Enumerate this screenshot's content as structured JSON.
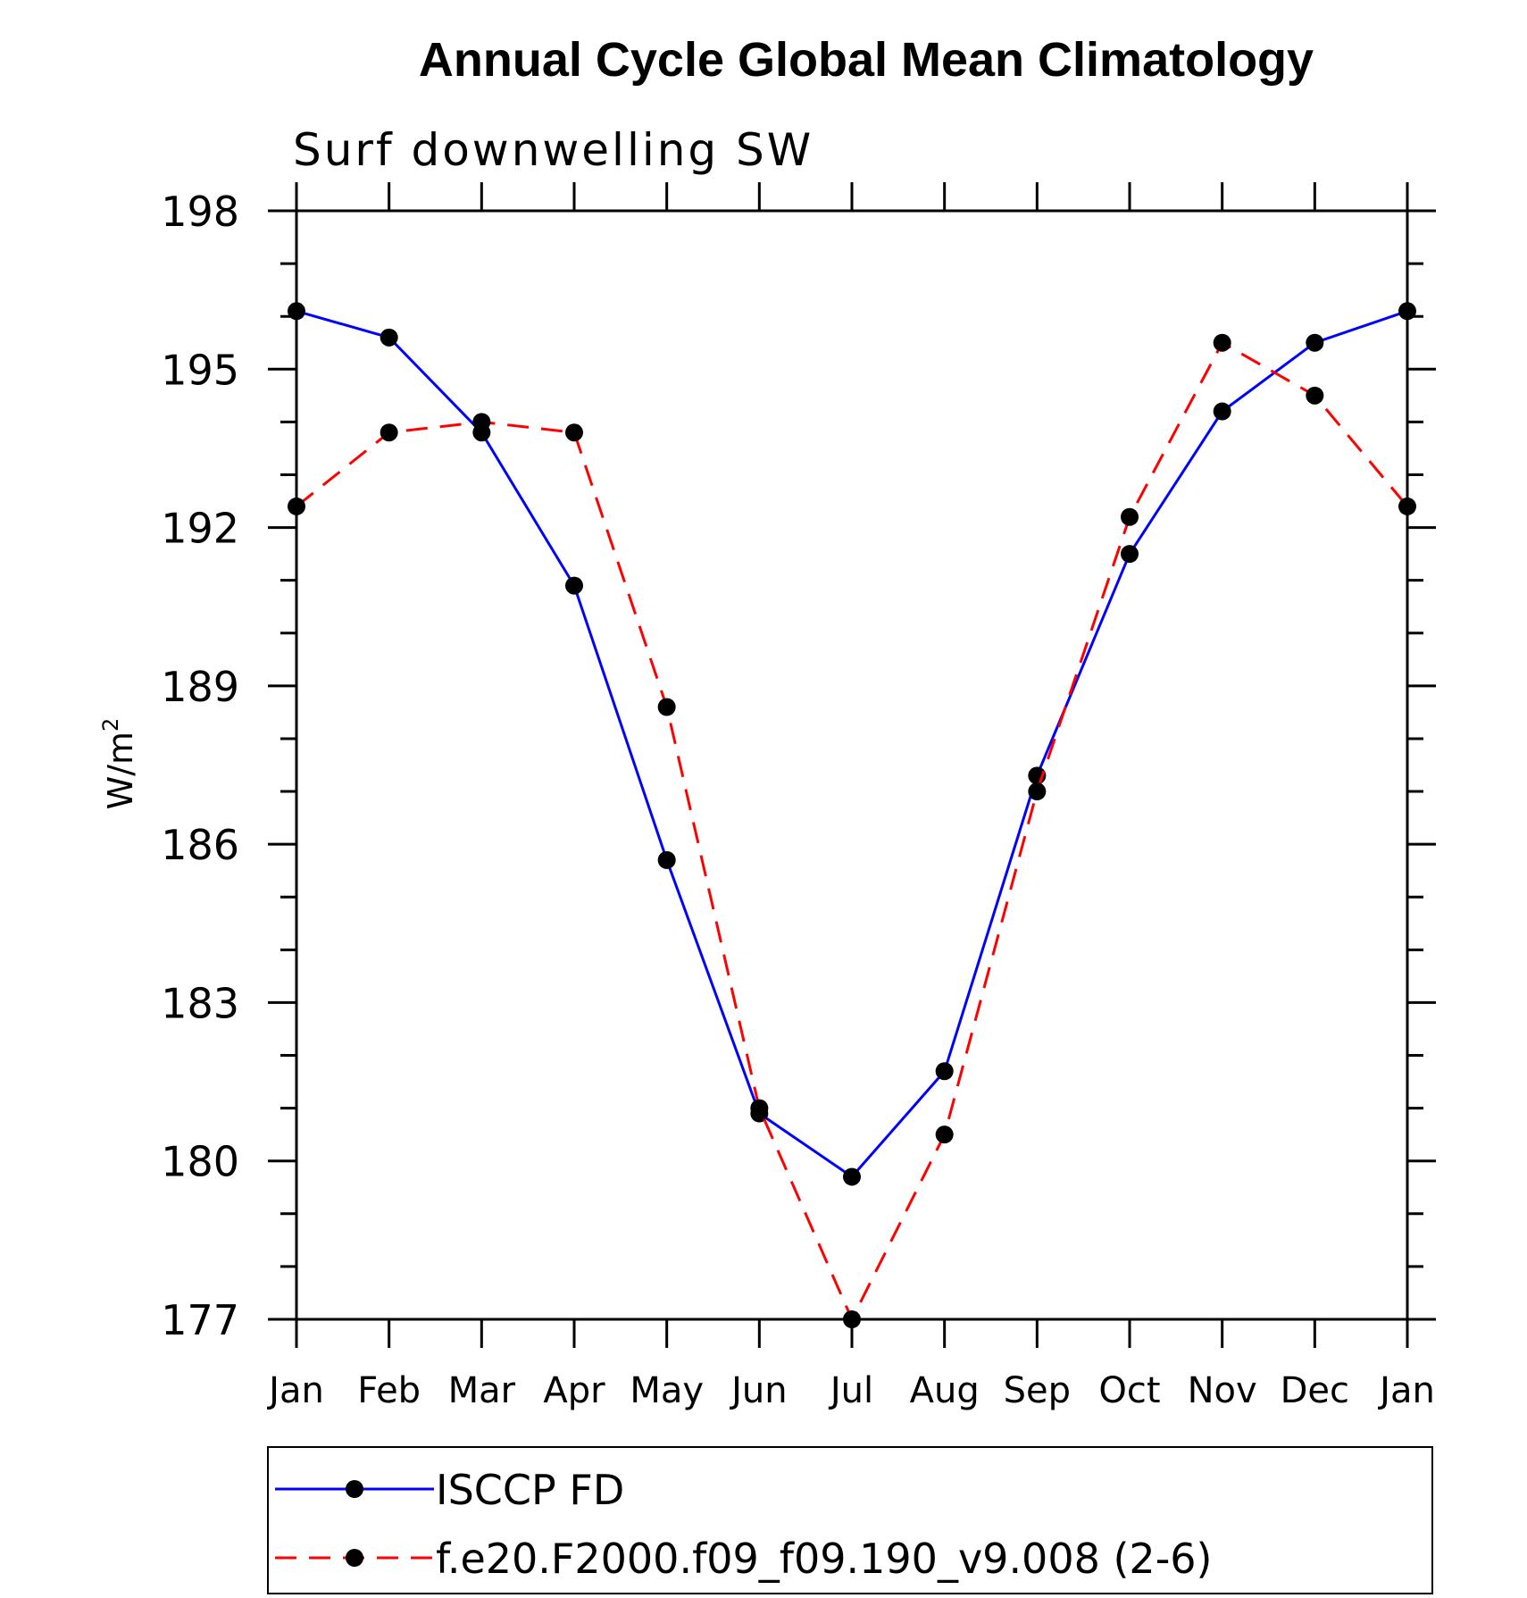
{
  "chart_data": {
    "type": "line",
    "title": "Annual Cycle Global Mean Climatology",
    "subtitle": "Surf downwelling SW",
    "ylabel": "W/m",
    "ylabel_superscript": "2",
    "xlabel": "",
    "categories": [
      "Jan",
      "Feb",
      "Mar",
      "Apr",
      "May",
      "Jun",
      "Jul",
      "Aug",
      "Sep",
      "Oct",
      "Nov",
      "Dec",
      "Jan"
    ],
    "ylim": [
      177,
      198
    ],
    "yticks": [
      "177",
      "180",
      "183",
      "186",
      "189",
      "192",
      "195",
      "198"
    ],
    "grid": false,
    "legend_position": "bottom",
    "series": [
      {
        "name": "ISCCP FD",
        "color": "#0000ff",
        "dash": "solid",
        "values": [
          196.1,
          195.6,
          193.8,
          190.9,
          185.7,
          180.9,
          179.7,
          181.7,
          187.3,
          191.5,
          194.2,
          195.5,
          196.1
        ]
      },
      {
        "name": "f.e20.F2000.f09_f09.190_v9.008 (2-6)",
        "color": "#ff0000",
        "dash": "dashed",
        "values": [
          192.4,
          193.8,
          194.0,
          193.8,
          188.6,
          181.0,
          177.0,
          180.5,
          187.0,
          192.2,
          195.5,
          194.5,
          192.4
        ]
      }
    ]
  }
}
